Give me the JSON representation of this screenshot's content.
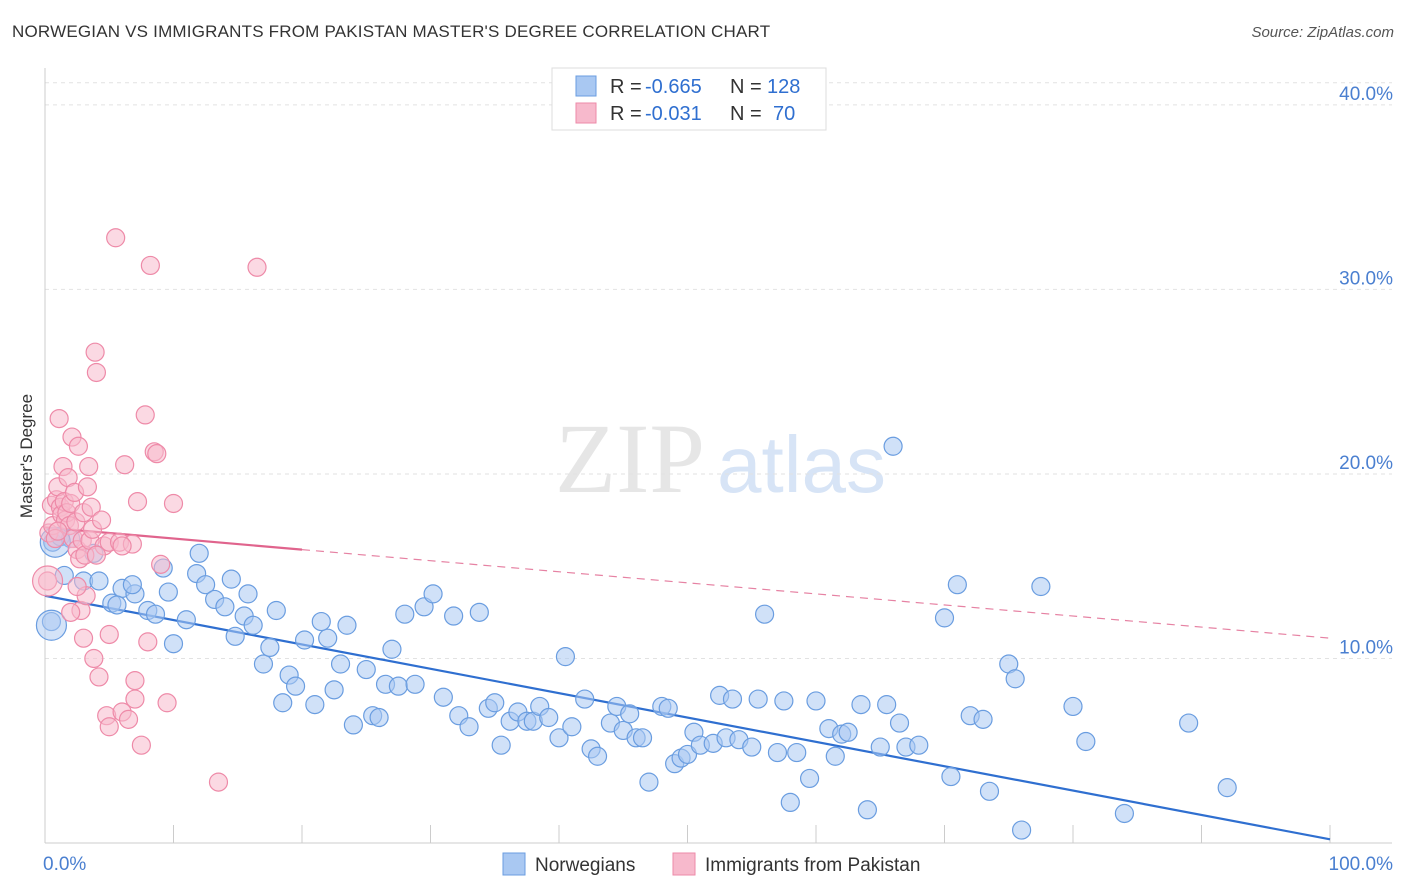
{
  "title": "NORWEGIAN VS IMMIGRANTS FROM PAKISTAN MASTER'S DEGREE CORRELATION CHART",
  "source": "Source: ZipAtlas.com",
  "watermark": {
    "zip": "ZIP",
    "atlas": "atlas"
  },
  "chart_data": {
    "type": "scatter",
    "xlabel": "",
    "ylabel": "Master's Degree",
    "xlim": [
      0,
      100
    ],
    "ylim": [
      0,
      42
    ],
    "x_tick_labels": [
      "0.0%",
      "100.0%"
    ],
    "y_ticks": [
      10,
      20,
      30,
      40
    ],
    "y_tick_labels": [
      "10.0%",
      "20.0%",
      "30.0%",
      "40.0%"
    ],
    "grid": true,
    "legend_top": [
      {
        "r_label": "R =",
        "r_value": "-0.665",
        "n_label": "N =",
        "n_value": "128",
        "color": "#a9c8f2"
      },
      {
        "r_label": "R =",
        "r_value": "-0.031",
        "n_label": "N =",
        "n_value": "70",
        "color": "#f7b9cc"
      }
    ],
    "series": [
      {
        "name": "Norwegians",
        "color": "#6a9de0",
        "fill": "#a9c8f2",
        "trend": {
          "x0": 0,
          "y0": 13.4,
          "x1": 100,
          "y1": 0.2,
          "style": "solid",
          "color": "#2f6fd0"
        },
        "points": [
          [
            0.5,
            12.0
          ],
          [
            0.6,
            16.3
          ],
          [
            1.2,
            16.6
          ],
          [
            2.0,
            16.5
          ],
          [
            3.8,
            15.7
          ],
          [
            5.2,
            13.0
          ],
          [
            6.0,
            13.8
          ],
          [
            7.0,
            13.5
          ],
          [
            8.0,
            12.6
          ],
          [
            9.2,
            14.9
          ],
          [
            10.0,
            10.8
          ],
          [
            11.0,
            12.1
          ],
          [
            11.8,
            14.6
          ],
          [
            12.5,
            14.0
          ],
          [
            13.2,
            13.2
          ],
          [
            14.0,
            12.8
          ],
          [
            14.8,
            11.2
          ],
          [
            15.5,
            12.3
          ],
          [
            16.2,
            11.8
          ],
          [
            17.0,
            9.7
          ],
          [
            17.5,
            10.6
          ],
          [
            18.5,
            7.6
          ],
          [
            19.0,
            9.1
          ],
          [
            19.5,
            8.5
          ],
          [
            20.2,
            11.0
          ],
          [
            21.0,
            7.5
          ],
          [
            22.0,
            11.1
          ],
          [
            22.5,
            8.3
          ],
          [
            23.5,
            11.8
          ],
          [
            24.0,
            6.4
          ],
          [
            25.0,
            9.4
          ],
          [
            25.5,
            6.9
          ],
          [
            26.0,
            6.8
          ],
          [
            26.5,
            8.6
          ],
          [
            27.5,
            8.5
          ],
          [
            28.0,
            12.4
          ],
          [
            28.8,
            8.6
          ],
          [
            29.5,
            12.8
          ],
          [
            30.2,
            13.5
          ],
          [
            31.0,
            7.9
          ],
          [
            31.8,
            12.3
          ],
          [
            32.2,
            6.9
          ],
          [
            33.0,
            6.3
          ],
          [
            33.8,
            12.5
          ],
          [
            34.5,
            7.3
          ],
          [
            35.0,
            7.6
          ],
          [
            35.5,
            5.3
          ],
          [
            36.2,
            6.6
          ],
          [
            36.8,
            7.1
          ],
          [
            37.5,
            6.6
          ],
          [
            38.0,
            6.6
          ],
          [
            38.5,
            7.4
          ],
          [
            39.2,
            6.8
          ],
          [
            40.0,
            5.7
          ],
          [
            40.5,
            10.1
          ],
          [
            41.0,
            6.3
          ],
          [
            42.0,
            7.8
          ],
          [
            42.5,
            5.1
          ],
          [
            43.0,
            4.7
          ],
          [
            44.0,
            6.5
          ],
          [
            44.5,
            7.4
          ],
          [
            45.0,
            6.1
          ],
          [
            45.5,
            7.0
          ],
          [
            46.0,
            5.7
          ],
          [
            46.5,
            5.7
          ],
          [
            47.0,
            3.3
          ],
          [
            48.0,
            7.4
          ],
          [
            48.5,
            7.3
          ],
          [
            49.0,
            4.3
          ],
          [
            49.5,
            4.6
          ],
          [
            50.0,
            4.8
          ],
          [
            50.5,
            6.0
          ],
          [
            51.0,
            5.3
          ],
          [
            52.0,
            5.4
          ],
          [
            52.5,
            8.0
          ],
          [
            53.0,
            5.7
          ],
          [
            53.5,
            7.8
          ],
          [
            54.0,
            5.6
          ],
          [
            55.0,
            5.2
          ],
          [
            55.5,
            7.8
          ],
          [
            56.0,
            12.4
          ],
          [
            57.0,
            4.9
          ],
          [
            57.5,
            7.7
          ],
          [
            58.0,
            2.2
          ],
          [
            58.5,
            4.9
          ],
          [
            59.5,
            3.5
          ],
          [
            60.0,
            7.7
          ],
          [
            61.0,
            6.2
          ],
          [
            61.5,
            4.7
          ],
          [
            62.0,
            5.9
          ],
          [
            62.5,
            6.0
          ],
          [
            63.5,
            7.5
          ],
          [
            64.0,
            1.8
          ],
          [
            65.0,
            5.2
          ],
          [
            65.5,
            7.5
          ],
          [
            66.0,
            21.5
          ],
          [
            66.5,
            6.5
          ],
          [
            67.0,
            5.2
          ],
          [
            68.0,
            5.3
          ],
          [
            70.0,
            12.2
          ],
          [
            70.5,
            3.6
          ],
          [
            71.0,
            14.0
          ],
          [
            72.0,
            6.9
          ],
          [
            73.0,
            6.7
          ],
          [
            73.5,
            2.8
          ],
          [
            75.0,
            9.7
          ],
          [
            75.5,
            8.9
          ],
          [
            76.0,
            0.7
          ],
          [
            77.5,
            13.9
          ],
          [
            80.0,
            7.4
          ],
          [
            81.0,
            5.5
          ],
          [
            84.0,
            1.6
          ],
          [
            89.0,
            6.5
          ],
          [
            92.0,
            3.0
          ],
          [
            1.5,
            14.5
          ],
          [
            3.0,
            14.2
          ],
          [
            4.2,
            14.2
          ],
          [
            5.6,
            12.9
          ],
          [
            6.8,
            14.0
          ],
          [
            8.6,
            12.4
          ],
          [
            9.6,
            13.6
          ],
          [
            12.0,
            15.7
          ],
          [
            14.5,
            14.3
          ],
          [
            15.8,
            13.5
          ],
          [
            18.0,
            12.6
          ],
          [
            21.5,
            12.0
          ],
          [
            23.0,
            9.7
          ],
          [
            27.0,
            10.5
          ]
        ],
        "large_points": [
          [
            0.5,
            11.8
          ],
          [
            0.8,
            16.3
          ]
        ]
      },
      {
        "name": "Immigrants from Pakistan",
        "color": "#ee8aa8",
        "fill": "#f7b9cc",
        "trend": {
          "x0": 0,
          "y0": 17.1,
          "x1": 20,
          "y1": 15.9,
          "style": "solid",
          "color": "#e0648d",
          "ext_x1": 100,
          "ext_y1": 11.1,
          "ext_style": "dashed"
        },
        "points": [
          [
            0.3,
            16.8
          ],
          [
            0.5,
            18.3
          ],
          [
            0.6,
            17.2
          ],
          [
            0.8,
            16.5
          ],
          [
            0.9,
            18.6
          ],
          [
            1.0,
            19.3
          ],
          [
            1.1,
            23.0
          ],
          [
            1.2,
            18.2
          ],
          [
            1.3,
            17.8
          ],
          [
            1.4,
            20.4
          ],
          [
            1.5,
            18.5
          ],
          [
            1.6,
            17.5
          ],
          [
            1.7,
            17.9
          ],
          [
            1.8,
            19.8
          ],
          [
            1.9,
            17.2
          ],
          [
            2.0,
            18.4
          ],
          [
            2.1,
            22.0
          ],
          [
            2.2,
            16.5
          ],
          [
            2.3,
            19.0
          ],
          [
            2.4,
            17.4
          ],
          [
            2.5,
            15.9
          ],
          [
            2.6,
            21.5
          ],
          [
            2.7,
            15.4
          ],
          [
            2.8,
            12.6
          ],
          [
            2.9,
            16.4
          ],
          [
            3.0,
            17.9
          ],
          [
            3.1,
            15.6
          ],
          [
            3.2,
            13.4
          ],
          [
            3.3,
            19.3
          ],
          [
            3.4,
            20.4
          ],
          [
            3.5,
            16.4
          ],
          [
            3.6,
            18.2
          ],
          [
            3.7,
            17.0
          ],
          [
            3.8,
            10.0
          ],
          [
            3.9,
            26.6
          ],
          [
            4.0,
            25.5
          ],
          [
            4.2,
            9.0
          ],
          [
            4.4,
            17.5
          ],
          [
            4.6,
            16.1
          ],
          [
            4.8,
            6.9
          ],
          [
            5.0,
            6.3
          ],
          [
            5.0,
            16.3
          ],
          [
            5.5,
            32.8
          ],
          [
            5.8,
            16.3
          ],
          [
            6.0,
            7.1
          ],
          [
            6.2,
            20.5
          ],
          [
            6.5,
            6.7
          ],
          [
            6.8,
            16.2
          ],
          [
            7.0,
            8.8
          ],
          [
            7.2,
            18.5
          ],
          [
            7.5,
            5.3
          ],
          [
            7.8,
            23.2
          ],
          [
            8.0,
            10.9
          ],
          [
            8.2,
            31.3
          ],
          [
            8.5,
            21.2
          ],
          [
            8.7,
            21.1
          ],
          [
            9.0,
            15.1
          ],
          [
            9.5,
            7.6
          ],
          [
            10.0,
            18.4
          ],
          [
            13.5,
            3.3
          ],
          [
            16.5,
            31.2
          ],
          [
            0.2,
            14.2
          ],
          [
            1.0,
            16.9
          ],
          [
            2.0,
            12.5
          ],
          [
            3.0,
            11.1
          ],
          [
            4.0,
            15.6
          ],
          [
            5.0,
            11.3
          ],
          [
            6.0,
            16.1
          ],
          [
            7.0,
            7.8
          ],
          [
            2.5,
            13.9
          ]
        ],
        "large_points": [
          [
            0.2,
            14.2
          ]
        ]
      }
    ]
  }
}
